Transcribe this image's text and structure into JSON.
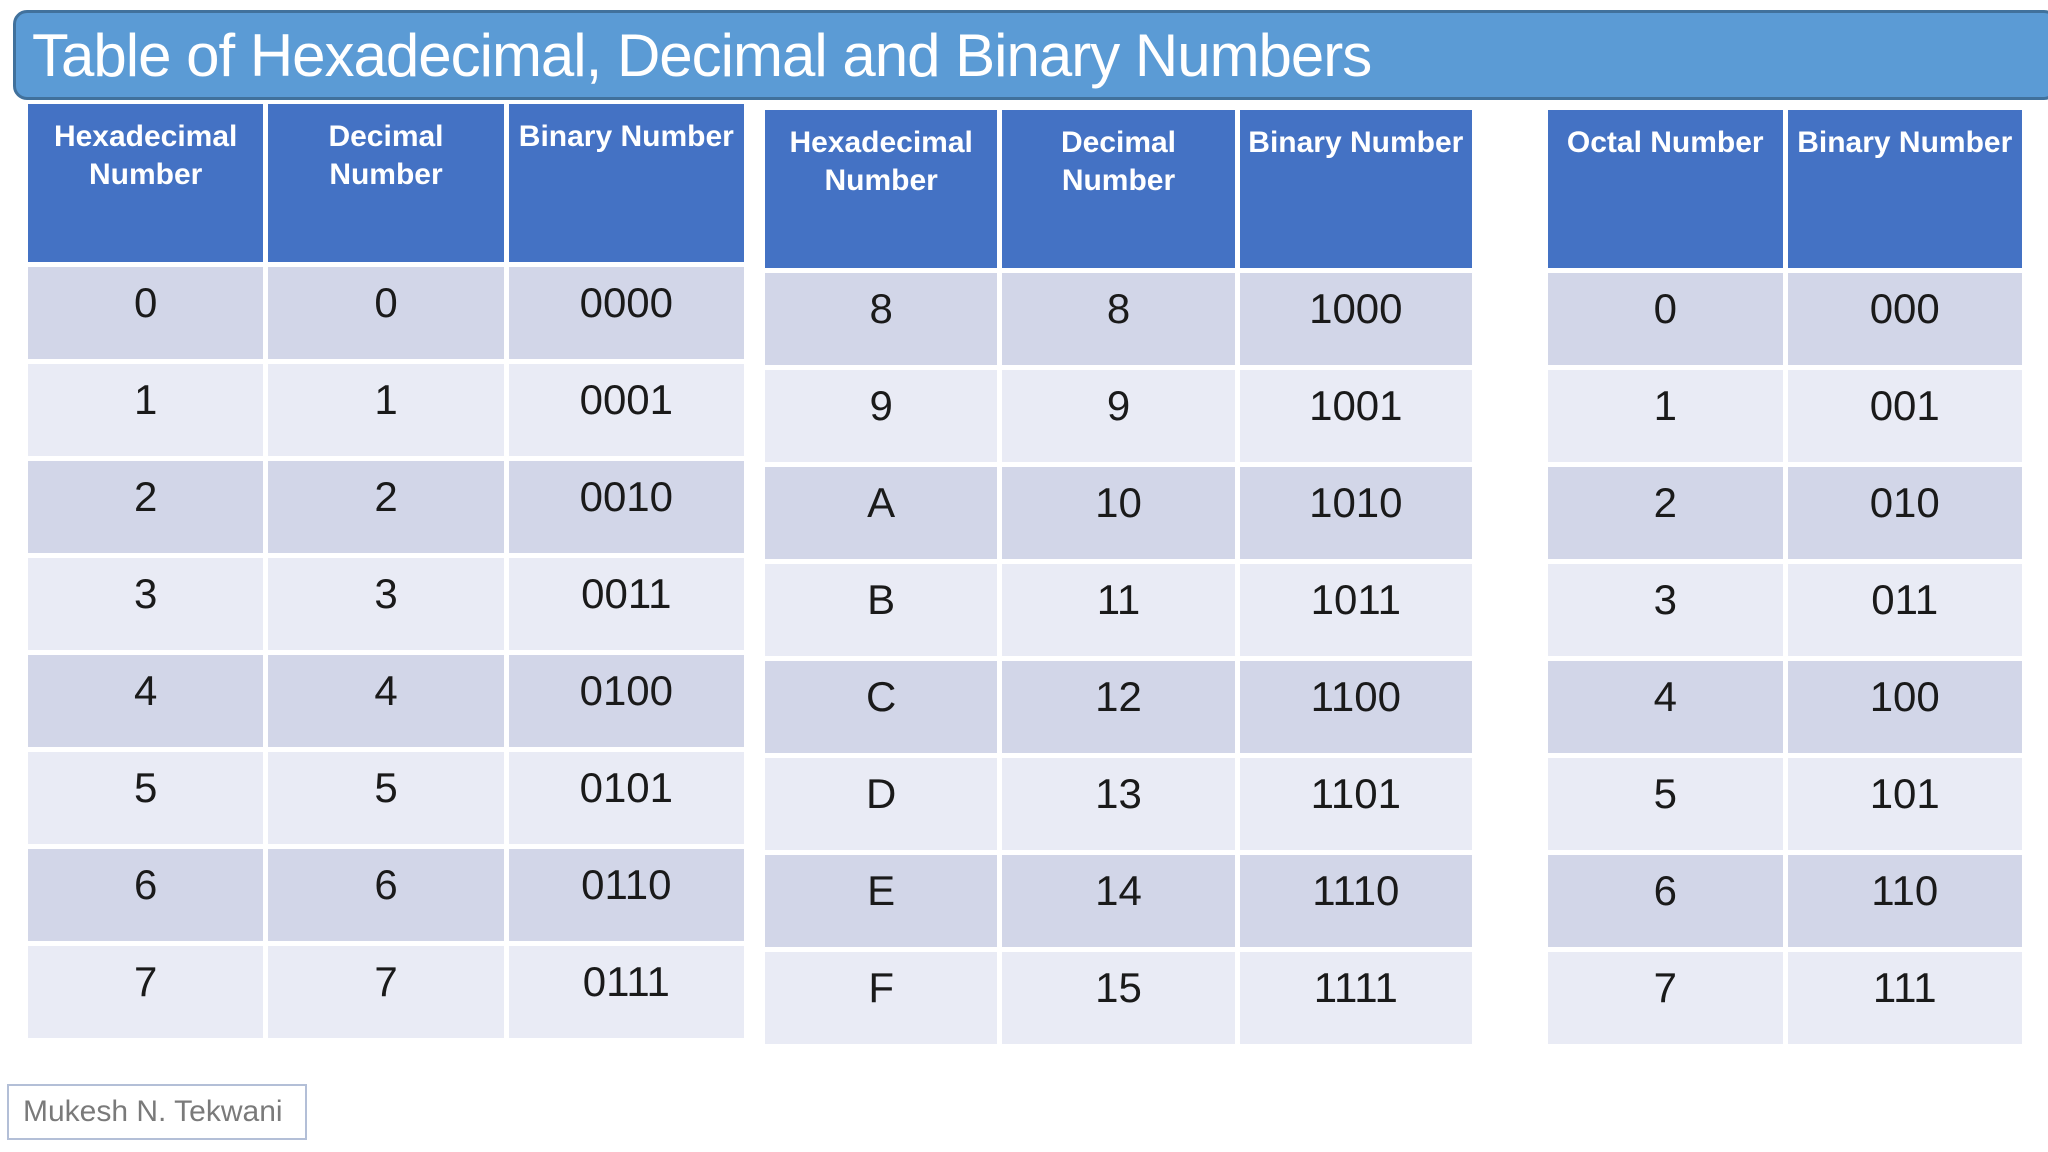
{
  "title": "Table of Hexadecimal, Decimal and Binary Numbers",
  "attribution": "Mukesh N. Tekwani",
  "colors": {
    "title_fill": "#5B9BD5",
    "title_border": "#41719C",
    "header_fill": "#4472C4",
    "header_text": "#ffffff",
    "row_band_dark": "#D2D6E8",
    "row_band_light": "#E9EBF5",
    "body_text": "#1a1a1a",
    "attribution_text": "#7a7a7a",
    "attribution_border": "#b3bfd7"
  },
  "tables": [
    {
      "name": "hex-dec-bin-0-7",
      "columns": [
        "Hexadecimal Number",
        "Decimal Number",
        "Binary Number"
      ],
      "rows": [
        [
          "0",
          "0",
          "0000"
        ],
        [
          "1",
          "1",
          "0001"
        ],
        [
          "2",
          "2",
          "0010"
        ],
        [
          "3",
          "3",
          "0011"
        ],
        [
          "4",
          "4",
          "0100"
        ],
        [
          "5",
          "5",
          "0101"
        ],
        [
          "6",
          "6",
          "0110"
        ],
        [
          "7",
          "7",
          "0111"
        ]
      ]
    },
    {
      "name": "hex-dec-bin-8-15",
      "columns": [
        "Hexadecimal Number",
        "Decimal Number",
        "Binary Number"
      ],
      "rows": [
        [
          "8",
          "8",
          "1000"
        ],
        [
          "9",
          "9",
          "1001"
        ],
        [
          "A",
          "10",
          "1010"
        ],
        [
          "B",
          "11",
          "1011"
        ],
        [
          "C",
          "12",
          "1100"
        ],
        [
          "D",
          "13",
          "1101"
        ],
        [
          "E",
          "14",
          "1110"
        ],
        [
          "F",
          "15",
          "1111"
        ]
      ]
    },
    {
      "name": "octal-binary-0-7",
      "columns": [
        "Octal Number",
        "Binary Number"
      ],
      "rows": [
        [
          "0",
          "000"
        ],
        [
          "1",
          "001"
        ],
        [
          "2",
          "010"
        ],
        [
          "3",
          "011"
        ],
        [
          "4",
          "100"
        ],
        [
          "5",
          "101"
        ],
        [
          "6",
          "110"
        ],
        [
          "7",
          "111"
        ]
      ]
    }
  ]
}
